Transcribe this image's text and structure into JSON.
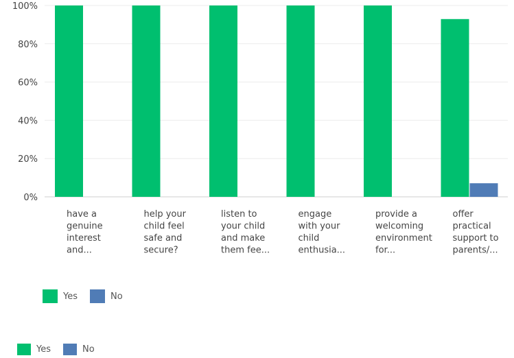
{
  "chart_data": {
    "type": "bar",
    "categories": [
      [
        "have a",
        "genuine",
        "interest",
        "and..."
      ],
      [
        "help your",
        "child feel",
        "safe and",
        "secure?"
      ],
      [
        "listen to",
        "your child",
        "and make",
        "them fee..."
      ],
      [
        "engage",
        "with your",
        "child",
        "enthusia..."
      ],
      [
        "provide a",
        "welcoming",
        "environment",
        "for..."
      ],
      [
        "offer",
        "practical",
        "support to",
        "parents/..."
      ]
    ],
    "series": [
      {
        "name": "Yes",
        "color": "#00bf6f",
        "values": [
          100,
          100,
          100,
          100,
          100,
          92.9
        ]
      },
      {
        "name": "No",
        "color": "#507cb6",
        "values": [
          0,
          0,
          0,
          0,
          0,
          7.1
        ]
      }
    ],
    "ylim": [
      0,
      100
    ],
    "yticks": [
      "0%",
      "20%",
      "40%",
      "60%",
      "80%",
      "100%"
    ],
    "grid": true,
    "legend_placement": "bottom-left"
  },
  "legends": [
    {
      "items": [
        {
          "label": "Yes",
          "color": "#00bf6f"
        },
        {
          "label": "No",
          "color": "#507cb6"
        }
      ]
    },
    {
      "items": [
        {
          "label": "Yes",
          "color": "#00bf6f"
        },
        {
          "label": "No",
          "color": "#507cb6"
        }
      ]
    }
  ]
}
